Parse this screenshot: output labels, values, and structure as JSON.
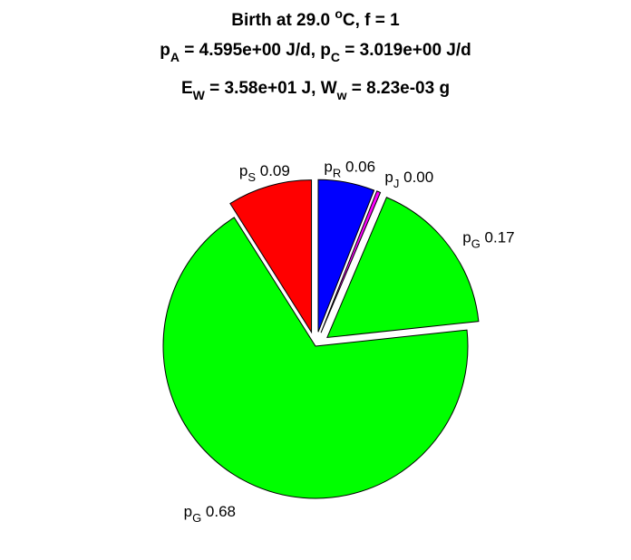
{
  "title": {
    "line1_prefix": "Birth at 29.0 ",
    "line1_deg": "o",
    "line1_suffix": "C, f = 1",
    "line2_pa_p": "p",
    "line2_pa_sub": "A",
    "line2_pa_val": " = 4.595e+00 J/d, ",
    "line2_pc_p": "p",
    "line2_pc_sub": "C",
    "line2_pc_val": " = 3.019e+00 J/d",
    "line3_ew_e": "E",
    "line3_ew_sub": "W",
    "line3_ew_val": " = 3.58e+01 J, ",
    "line3_ww_w": "W",
    "line3_ww_sub": "w",
    "line3_ww_val": " = 8.23e-03 g"
  },
  "chart_data": {
    "type": "pie",
    "slices": [
      {
        "symbol": "p",
        "sub": "S",
        "value": 0.09,
        "value_label": "0.09",
        "color": "#ff0000",
        "exploded": true
      },
      {
        "symbol": "p",
        "sub": "R",
        "value": 0.06,
        "value_label": "0.06",
        "color": "#0000ff",
        "exploded": true
      },
      {
        "symbol": "p",
        "sub": "J",
        "value": 0.004,
        "value_label": "0.00",
        "color": "#ff00ff",
        "exploded": true
      },
      {
        "symbol": "p",
        "sub": "G",
        "value": 0.17,
        "value_label": "0.17",
        "color": "#00ff00",
        "exploded": true
      },
      {
        "symbol": "p",
        "sub": "G",
        "value": 0.68,
        "value_label": "0.68",
        "color": "#00ff00",
        "exploded": false
      }
    ]
  }
}
